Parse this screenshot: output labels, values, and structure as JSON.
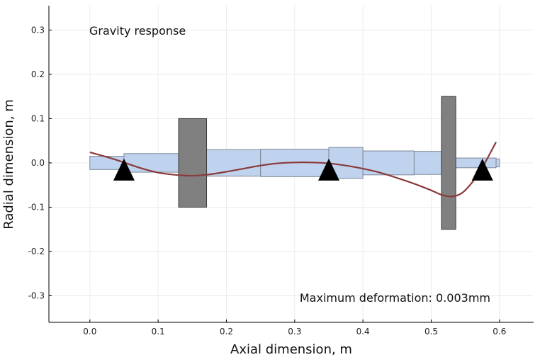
{
  "chart_data": {
    "type": "rotor-diagram",
    "title": "",
    "xlabel": "Axial dimension, m",
    "ylabel": "Radial dimension, m",
    "xlim": [
      -0.06,
      0.65
    ],
    "ylim": [
      -0.36,
      0.355
    ],
    "x_ticks": [
      0.0,
      0.1,
      0.2,
      0.3,
      0.4,
      0.5,
      0.6
    ],
    "x_tick_labels": [
      "0.0",
      "0.1",
      "0.2",
      "0.3",
      "0.4",
      "0.5",
      "0.6"
    ],
    "y_ticks": [
      -0.3,
      -0.2,
      -0.1,
      0.0,
      0.1,
      0.2,
      0.3
    ],
    "y_tick_labels": [
      "-0.3",
      "-0.2",
      "-0.1",
      "0.0",
      "0.1",
      "0.2",
      "0.3"
    ],
    "grid": true,
    "annotations": {
      "top_left": "Gravity response",
      "bottom_right": "Maximum deformation: 0.003mm"
    },
    "colors": {
      "shaft": "#bfd3ee",
      "shaft_edge": "#7d8796",
      "disk": "#808080",
      "disk_edge": "#3a3a3a",
      "bearing": "#000000",
      "deformation": "#8b3a3a",
      "grid": "#ececec"
    },
    "shaft_elements": [
      {
        "x_start": 0.0,
        "x_end": 0.05,
        "radius": 0.015
      },
      {
        "x_start": 0.05,
        "x_end": 0.13,
        "radius": 0.021
      },
      {
        "x_start": 0.13,
        "x_end": 0.25,
        "radius": 0.03
      },
      {
        "x_start": 0.25,
        "x_end": 0.35,
        "radius": 0.031
      },
      {
        "x_start": 0.35,
        "x_end": 0.4,
        "radius": 0.035
      },
      {
        "x_start": 0.4,
        "x_end": 0.475,
        "radius": 0.027
      },
      {
        "x_start": 0.475,
        "x_end": 0.515,
        "radius": 0.026
      },
      {
        "x_start": 0.515,
        "x_end": 0.595,
        "radius": 0.011
      },
      {
        "x_start": 0.595,
        "x_end": 0.6,
        "radius": 0.009
      }
    ],
    "disks": [
      {
        "x_start": 0.13,
        "x_end": 0.171,
        "radius": 0.1
      },
      {
        "x_start": 0.515,
        "x_end": 0.536,
        "radius": 0.15
      }
    ],
    "bearings": [
      {
        "x": 0.05,
        "y": 0.0
      },
      {
        "x": 0.35,
        "y": 0.0
      },
      {
        "x": 0.575,
        "y": 0.0
      }
    ],
    "deformation_curve": {
      "x": [
        0.0,
        0.03,
        0.05,
        0.075,
        0.1,
        0.125,
        0.15,
        0.175,
        0.2,
        0.225,
        0.25,
        0.275,
        0.3,
        0.325,
        0.35,
        0.375,
        0.4,
        0.425,
        0.45,
        0.475,
        0.5,
        0.515,
        0.53,
        0.545,
        0.56,
        0.575,
        0.595
      ],
      "y": [
        0.024,
        0.011,
        0.001,
        -0.012,
        -0.022,
        -0.027,
        -0.029,
        -0.026,
        -0.02,
        -0.013,
        -0.006,
        -0.001,
        0.001,
        0.001,
        -0.001,
        -0.006,
        -0.013,
        -0.022,
        -0.034,
        -0.047,
        -0.062,
        -0.072,
        -0.076,
        -0.068,
        -0.044,
        -0.01,
        0.047
      ]
    }
  }
}
